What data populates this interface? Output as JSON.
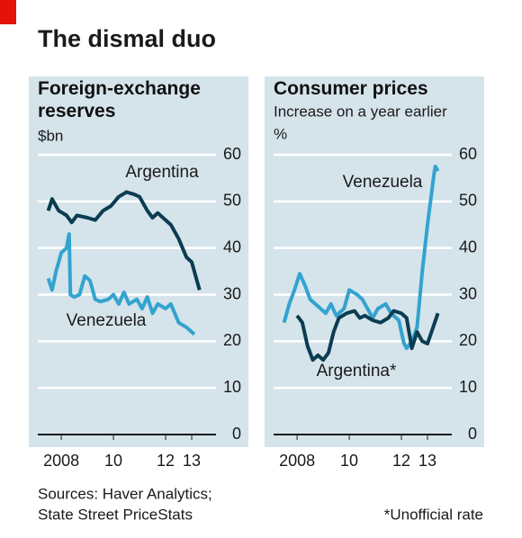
{
  "title": "The dismal duo",
  "sources": [
    "Sources: Haver Analytics;",
    "State Street PriceStats"
  ],
  "footnote": "*Unofficial rate",
  "chart_data": [
    {
      "type": "line",
      "title": "Foreign-exchange reserves",
      "subtitle": "$bn",
      "xlim": [
        2007.6,
        2014.5
      ],
      "xticks": [
        {
          "value": 2008.5,
          "label": "2008"
        },
        {
          "value": 2010.5,
          "label": "10"
        },
        {
          "value": 2012.5,
          "label": "12"
        },
        {
          "value": 2013.5,
          "label": "13"
        }
      ],
      "ylim": [
        0,
        60
      ],
      "yticks": [
        0,
        10,
        20,
        30,
        40,
        50,
        60
      ],
      "grid": true,
      "series": [
        {
          "name": "Argentina",
          "color": "#0b3d52",
          "x": [
            2008.0,
            2008.15,
            2008.4,
            2008.7,
            2008.9,
            2009.1,
            2009.5,
            2009.8,
            2010.1,
            2010.4,
            2010.7,
            2011.0,
            2011.3,
            2011.5,
            2011.8,
            2012.0,
            2012.2,
            2012.5,
            2012.7,
            2013.0,
            2013.3,
            2013.5,
            2013.8
          ],
          "values": [
            48,
            50.5,
            48,
            47,
            45.5,
            47,
            46.5,
            46,
            48,
            49,
            51,
            52,
            51.5,
            51,
            48,
            46.5,
            47.5,
            46,
            45,
            42,
            38,
            37,
            31
          ]
        },
        {
          "name": "Venezuela",
          "color": "#33a3cf",
          "x": [
            2008.0,
            2008.15,
            2008.3,
            2008.5,
            2008.7,
            2008.8,
            2008.85,
            2009.0,
            2009.2,
            2009.4,
            2009.6,
            2009.8,
            2010.0,
            2010.3,
            2010.5,
            2010.7,
            2010.9,
            2011.1,
            2011.4,
            2011.6,
            2011.8,
            2012.0,
            2012.2,
            2012.5,
            2012.7,
            2013.0,
            2013.3,
            2013.6
          ],
          "values": [
            33.5,
            31,
            35,
            39,
            40,
            43,
            30,
            29.5,
            30,
            34,
            33,
            29,
            28.5,
            29,
            30,
            28,
            30.5,
            28,
            29,
            27,
            29.5,
            26,
            28,
            27,
            28,
            24,
            23,
            21.5
          ]
        }
      ]
    },
    {
      "type": "line",
      "title": "Consumer prices",
      "subtitle": "Increase on a year earlier",
      "unit": "%",
      "xlim": [
        2007.6,
        2014.5
      ],
      "xticks": [
        {
          "value": 2008.5,
          "label": "2008"
        },
        {
          "value": 2010.5,
          "label": "10"
        },
        {
          "value": 2012.5,
          "label": "12"
        },
        {
          "value": 2013.5,
          "label": "13"
        }
      ],
      "ylim": [
        0,
        60
      ],
      "yticks": [
        0,
        10,
        20,
        30,
        40,
        50,
        60
      ],
      "grid": true,
      "series": [
        {
          "name": "Venezuela",
          "color": "#33a3cf",
          "x": [
            2008.0,
            2008.2,
            2008.4,
            2008.6,
            2008.8,
            2009.0,
            2009.3,
            2009.6,
            2009.8,
            2010.0,
            2010.3,
            2010.5,
            2010.8,
            2011.0,
            2011.2,
            2011.4,
            2011.6,
            2011.9,
            2012.1,
            2012.4,
            2012.6,
            2012.7,
            2012.9,
            2013.1,
            2013.3,
            2013.5,
            2013.75,
            2013.8,
            2013.9
          ],
          "values": [
            24,
            28,
            31,
            34.5,
            32,
            29,
            27.5,
            26,
            28,
            25.5,
            27,
            31,
            30,
            29,
            27,
            25,
            27,
            28,
            26,
            24.5,
            19.5,
            18.5,
            20,
            23,
            35,
            45,
            56,
            57.5,
            56.5
          ]
        },
        {
          "name": "Argentina*",
          "color": "#0b3d52",
          "x": [
            2008.5,
            2008.7,
            2008.9,
            2009.1,
            2009.3,
            2009.5,
            2009.7,
            2009.9,
            2010.1,
            2010.4,
            2010.7,
            2010.9,
            2011.1,
            2011.4,
            2011.7,
            2012.0,
            2012.2,
            2012.5,
            2012.7,
            2012.9,
            2013.1,
            2013.3,
            2013.5,
            2013.9
          ],
          "values": [
            25.5,
            24,
            19,
            16,
            17,
            16,
            17.5,
            22,
            25,
            26,
            26.5,
            25,
            25.5,
            24.5,
            24,
            25,
            26.5,
            26,
            25,
            18.5,
            22,
            20,
            19.5,
            26
          ]
        }
      ]
    }
  ]
}
